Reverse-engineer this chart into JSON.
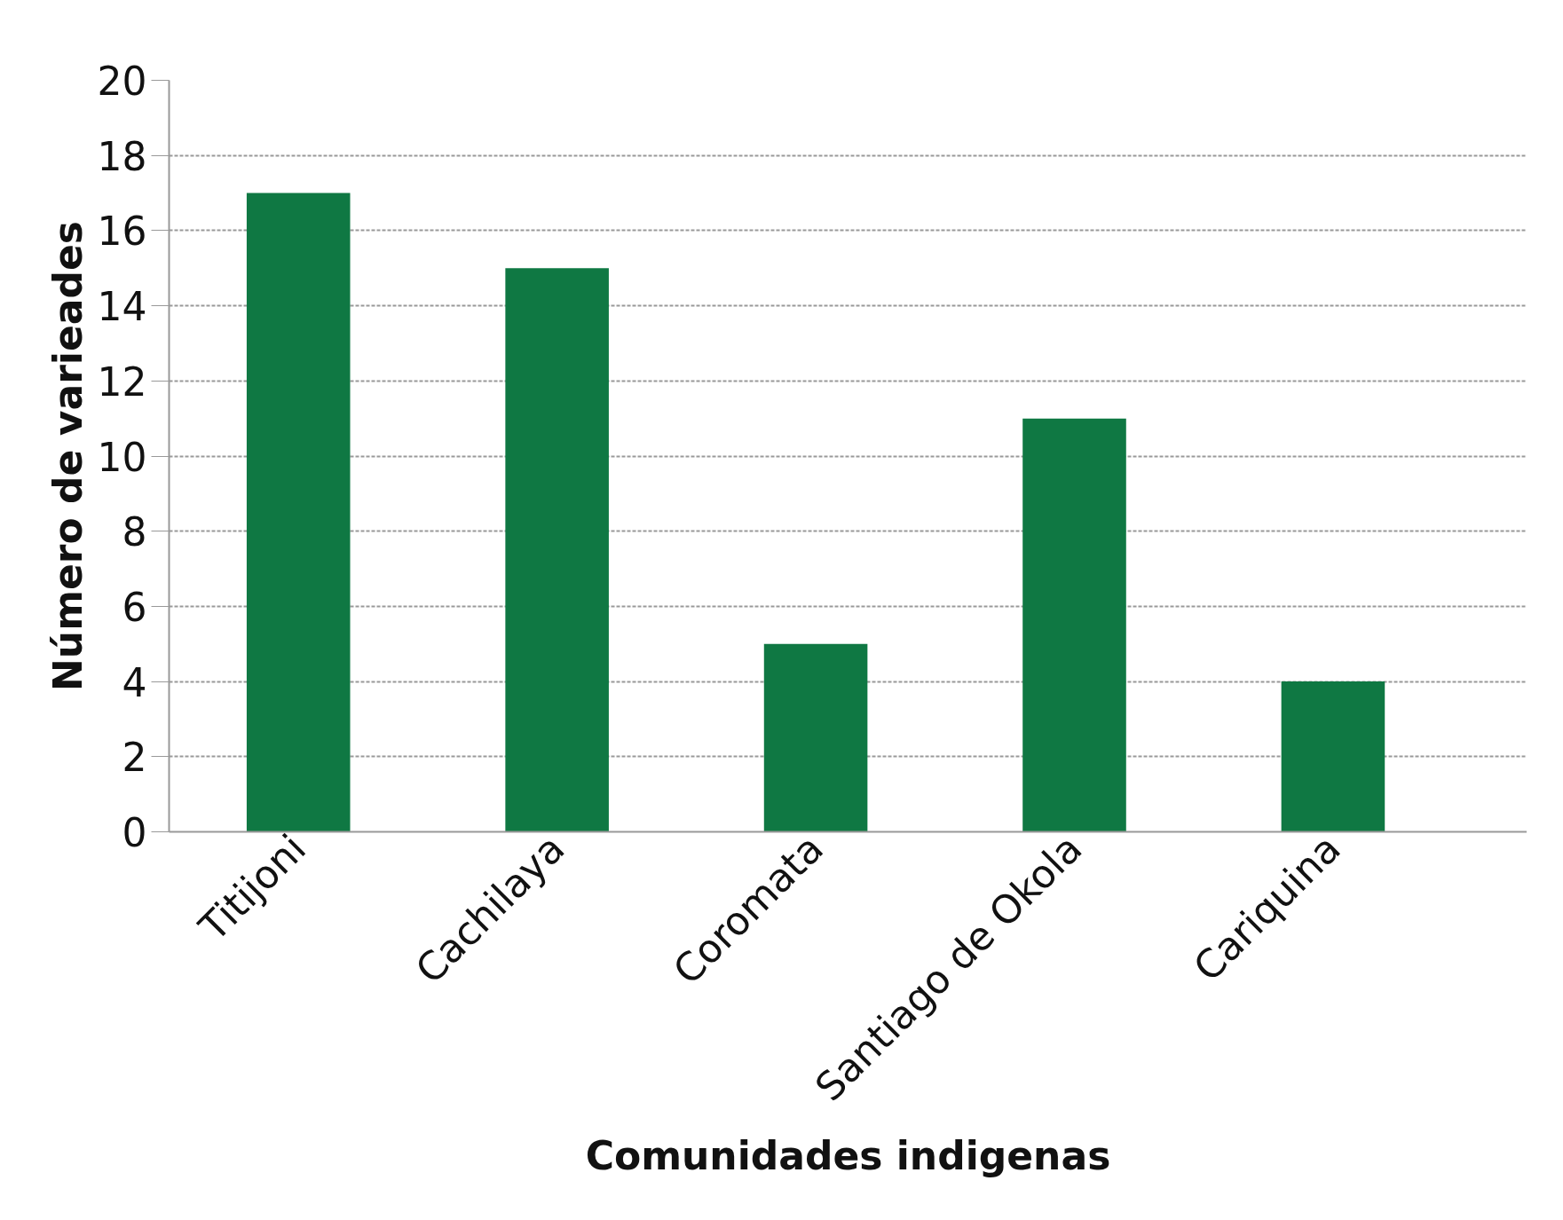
{
  "chart_data": {
    "type": "bar",
    "xlabel": "Comunidades indigenas",
    "ylabel": "Número de varieades",
    "categories": [
      "Titijoni",
      "Cachilaya",
      "Coromata",
      "Santiago de Okola",
      "Cariquina"
    ],
    "values": [
      17,
      15,
      5,
      11,
      4
    ],
    "color": "#0f7843",
    "ylim": [
      0,
      20
    ],
    "yticks": [
      0,
      2,
      4,
      6,
      8,
      10,
      12,
      14,
      16,
      18,
      20
    ],
    "grid": "y"
  }
}
